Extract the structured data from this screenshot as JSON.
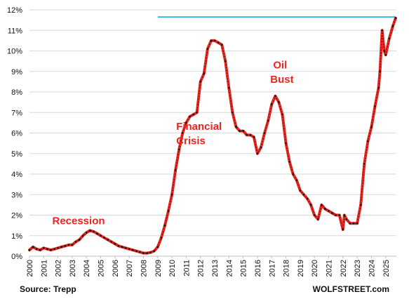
{
  "chart_data": {
    "type": "line",
    "title": "",
    "xlabel": "",
    "ylabel": "",
    "xlim": [
      2000,
      2025.75
    ],
    "ylim": [
      0,
      12
    ],
    "y_tick_labels": [
      "0%",
      "1%",
      "2%",
      "3%",
      "4%",
      "5%",
      "6%",
      "7%",
      "8%",
      "9%",
      "10%",
      "11%",
      "12%"
    ],
    "x_tick_labels": [
      "2000",
      "2001",
      "2002",
      "2003",
      "2004",
      "2005",
      "2006",
      "2007",
      "2008",
      "2009",
      "2010",
      "2011",
      "2012",
      "2013",
      "2014",
      "2015",
      "2016",
      "2017",
      "2018",
      "2019",
      "2020",
      "2021",
      "2022",
      "2023",
      "2024",
      "2025"
    ],
    "grid": "horizontal",
    "series_color": "#e8261f",
    "marker_color": "#111111",
    "reference_line": {
      "y": 11.65,
      "x_start": 2009.0,
      "x_end": 2025.7,
      "color": "#35b4d9"
    },
    "annotations": [
      {
        "text": "Recession",
        "x": 2001.6,
        "y": 1.55
      },
      {
        "text": "Financial",
        "x": 2010.3,
        "y": 6.15
      },
      {
        "text": "Crisis",
        "x": 2010.3,
        "y": 5.45
      },
      {
        "text": "Oil",
        "x": 2017.1,
        "y": 9.15
      },
      {
        "text": "Bust",
        "x": 2016.9,
        "y": 8.45
      }
    ],
    "series": [
      {
        "x": [
          2000.0,
          2000.25,
          2000.5,
          2000.75,
          2001.0,
          2001.25,
          2001.5,
          2001.75,
          2002.0,
          2002.25,
          2002.5,
          2002.75,
          2003.0,
          2003.25,
          2003.5,
          2003.75,
          2004.0,
          2004.25,
          2004.5,
          2004.75,
          2005.0,
          2005.25,
          2005.5,
          2005.75,
          2006.0,
          2006.25,
          2006.5,
          2006.75,
          2007.0,
          2007.25,
          2007.5,
          2007.75,
          2008.0,
          2008.25,
          2008.5,
          2008.75,
          2009.0,
          2009.25,
          2009.5,
          2009.75,
          2010.0,
          2010.25,
          2010.5,
          2010.75,
          2011.0,
          2011.25,
          2011.5,
          2011.75,
          2012.0,
          2012.25,
          2012.5,
          2012.75,
          2013.0,
          2013.25,
          2013.5,
          2013.75,
          2014.0,
          2014.25,
          2014.5,
          2014.75,
          2015.0,
          2015.25,
          2015.5,
          2015.75,
          2016.0,
          2016.25,
          2016.5,
          2016.75,
          2017.0,
          2017.25,
          2017.5,
          2017.75,
          2018.0,
          2018.25,
          2018.5,
          2018.75,
          2019.0,
          2019.25,
          2019.5,
          2019.75,
          2020.0,
          2020.25,
          2020.5,
          2020.75,
          2021.0,
          2021.25,
          2021.5,
          2021.75,
          2022.0,
          2022.1,
          2022.25,
          2022.5,
          2022.75,
          2023.0,
          2023.25,
          2023.5,
          2023.75,
          2024.0,
          2024.25,
          2024.5,
          2024.6,
          2024.75,
          2024.9,
          2025.0,
          2025.25,
          2025.5,
          2025.7
        ],
        "values": [
          0.3,
          0.45,
          0.35,
          0.3,
          0.4,
          0.35,
          0.3,
          0.35,
          0.4,
          0.45,
          0.5,
          0.55,
          0.55,
          0.7,
          0.8,
          1.0,
          1.15,
          1.25,
          1.2,
          1.1,
          1.0,
          0.9,
          0.8,
          0.7,
          0.6,
          0.5,
          0.45,
          0.4,
          0.35,
          0.3,
          0.25,
          0.2,
          0.15,
          0.15,
          0.18,
          0.25,
          0.45,
          0.9,
          1.5,
          2.2,
          3.0,
          4.2,
          5.2,
          6.0,
          6.5,
          6.8,
          6.9,
          7.0,
          8.5,
          8.9,
          10.1,
          10.5,
          10.5,
          10.4,
          10.3,
          9.5,
          8.2,
          7.0,
          6.3,
          6.1,
          6.1,
          5.9,
          5.9,
          5.8,
          5.0,
          5.3,
          6.0,
          6.6,
          7.4,
          7.8,
          7.5,
          6.9,
          5.5,
          4.6,
          4.0,
          3.7,
          3.2,
          3.0,
          2.8,
          2.5,
          2.0,
          1.8,
          2.5,
          2.3,
          2.2,
          2.1,
          2.0,
          2.0,
          1.3,
          2.0,
          1.8,
          1.6,
          1.6,
          1.6,
          2.5,
          4.5,
          5.6,
          6.3,
          7.3,
          8.2,
          9.0,
          11.0,
          10.0,
          9.8,
          10.6,
          11.2,
          11.6
        ]
      }
    ]
  },
  "footer": {
    "source": "Source: Trepp",
    "brand": "WOLFSTREET.com"
  }
}
